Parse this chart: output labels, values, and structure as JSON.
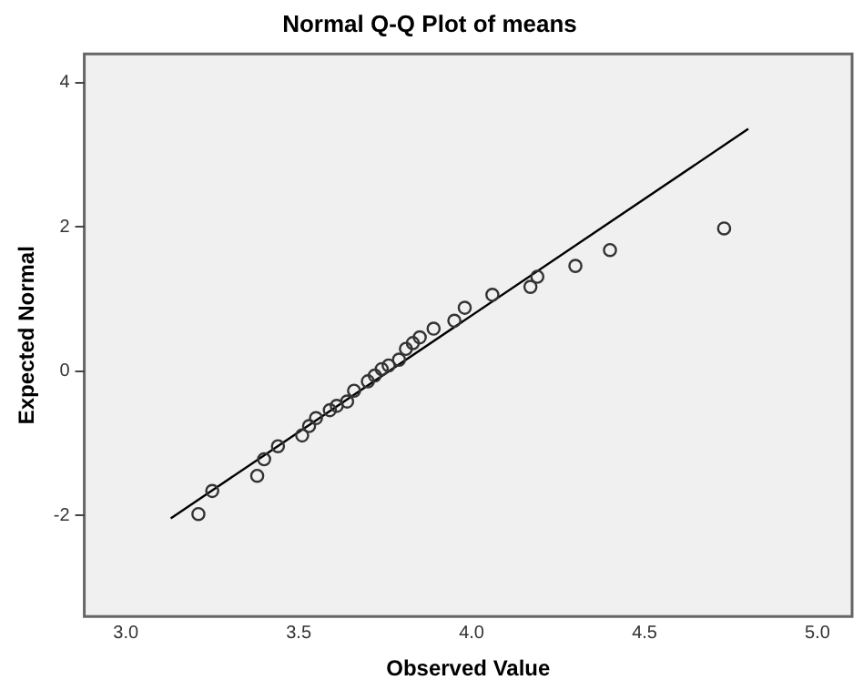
{
  "chart_data": {
    "type": "scatter",
    "title": "Normal Q-Q Plot of means",
    "xlabel": "Observed Value",
    "ylabel": "Expected Normal",
    "xlim": [
      2.88,
      5.1
    ],
    "ylim": [
      -3.4,
      4.4
    ],
    "xticks": [
      {
        "value": 3,
        "label": "3.0"
      },
      {
        "value": 3.5,
        "label": "3.5"
      },
      {
        "value": 4,
        "label": "4.0"
      },
      {
        "value": 4.5,
        "label": "4.5"
      },
      {
        "value": 5,
        "label": "5.0"
      }
    ],
    "yticks": [
      -2,
      0,
      2,
      4
    ],
    "grid": false,
    "legend": false,
    "marker": "circle",
    "series": [
      {
        "color": "#333333",
        "x": [
          3.21,
          3.25,
          3.38,
          3.4,
          3.44,
          3.51,
          3.53,
          3.55,
          3.59,
          3.61,
          3.64,
          3.66,
          3.7,
          3.72,
          3.74,
          3.76,
          3.79,
          3.81,
          3.83,
          3.85,
          3.89,
          3.95,
          3.98,
          4.06,
          4.17,
          4.19,
          4.3,
          4.4,
          4.73
        ],
        "values": [
          -1.98,
          -1.66,
          -1.45,
          -1.22,
          -1.04,
          -0.89,
          -0.76,
          -0.65,
          -0.54,
          -0.48,
          -0.42,
          -0.27,
          -0.14,
          -0.06,
          0.03,
          0.08,
          0.16,
          0.31,
          0.39,
          0.47,
          0.59,
          0.7,
          0.88,
          1.06,
          1.17,
          1.31,
          1.46,
          1.68,
          1.98
        ]
      },
      {
        "type": "line",
        "color": "#000000",
        "marker": "none",
        "line_style": "solid",
        "x": [
          3.13,
          4.8
        ],
        "values": [
          -2.04,
          3.36
        ]
      }
    ]
  }
}
